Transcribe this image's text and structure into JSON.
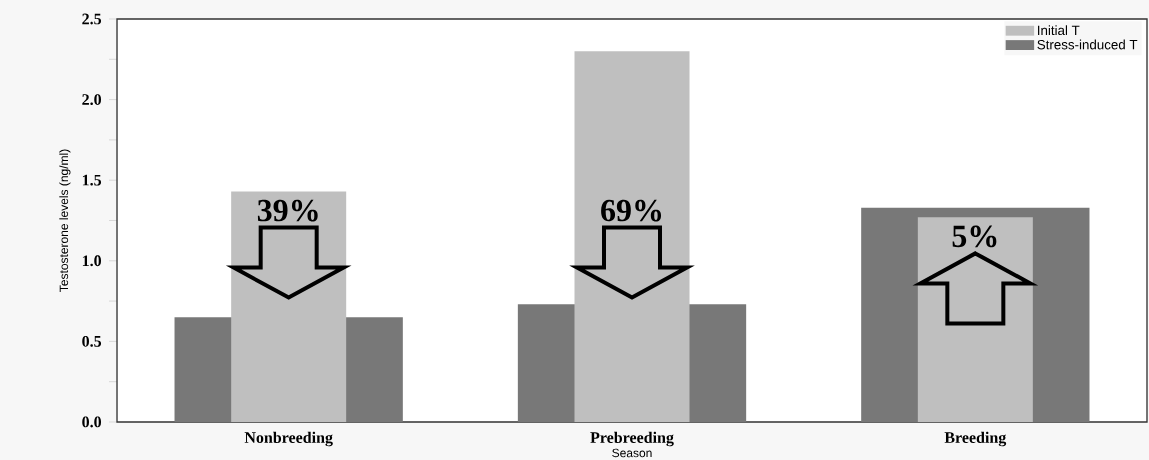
{
  "chart_data": {
    "type": "bar",
    "xlabel": "Season",
    "ylabel": "Testosterone levels (ng/ml)",
    "categories": [
      "Nonbreeding",
      "Prebreeding",
      "Breeding"
    ],
    "series": [
      {
        "name": "Initial T",
        "color": "#bfbfbf",
        "values": [
          1.43,
          2.3,
          1.27
        ]
      },
      {
        "name": "Stress-induced T",
        "color": "#787878",
        "values": [
          0.65,
          0.73,
          1.33
        ]
      }
    ],
    "ylim": [
      0,
      2.5
    ],
    "yticks": [
      {
        "value": 0,
        "label": "0.0"
      },
      {
        "value": 0.25,
        "label": null
      },
      {
        "value": 0.5,
        "label": "0.5"
      },
      {
        "value": 0.75,
        "label": null
      },
      {
        "value": 1,
        "label": "1.0"
      },
      {
        "value": 1.25,
        "label": null
      },
      {
        "value": 1.5,
        "label": "1.5"
      },
      {
        "value": 1.75,
        "label": null
      },
      {
        "value": 2,
        "label": "2.0"
      },
      {
        "value": 2.25,
        "label": null
      },
      {
        "value": 2.5,
        "label": "2.5"
      }
    ],
    "annotations": [
      "39%",
      "69%",
      "5%"
    ],
    "grid": false,
    "legend": "top right"
  }
}
